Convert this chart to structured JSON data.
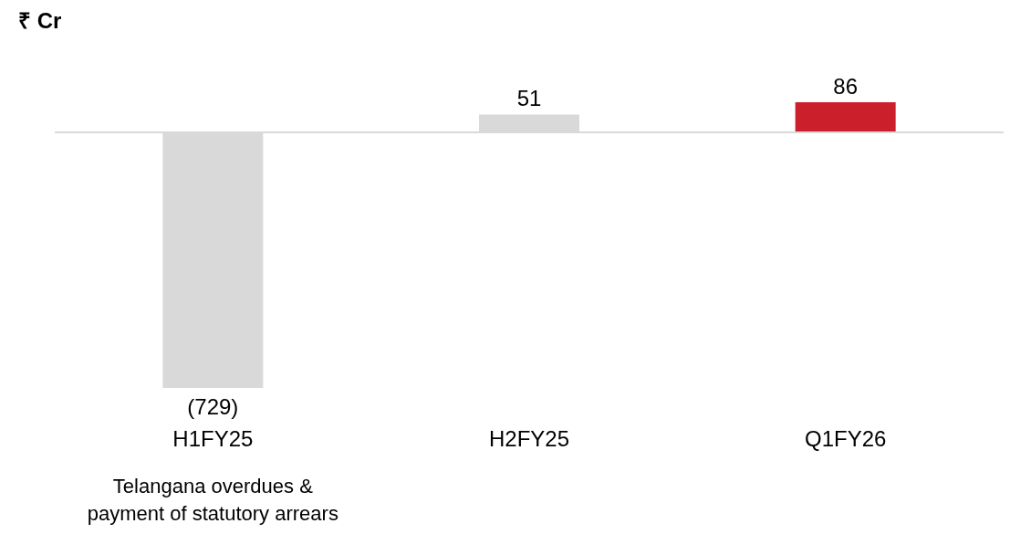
{
  "chart_data": {
    "type": "bar",
    "title": "₹ Cr",
    "categories": [
      "H1FY25",
      "H2FY25",
      "Q1FY26"
    ],
    "values": [
      -729,
      51,
      86
    ],
    "colors": [
      "#d9d9d9",
      "#d9d9d9",
      "#cc1f2c"
    ],
    "value_labels": [
      "(729)",
      "51",
      "86"
    ],
    "annotations": [
      "Telangana overdues & payment of statutory arrears"
    ]
  }
}
